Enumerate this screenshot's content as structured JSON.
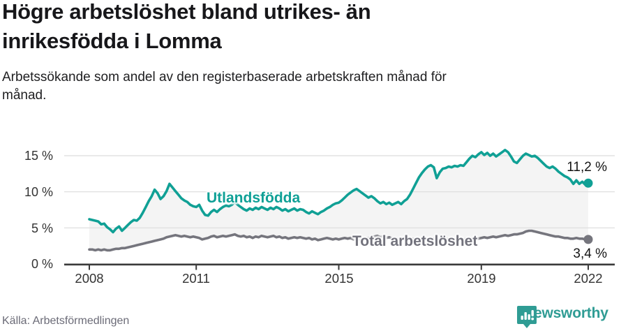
{
  "header": {
    "title_line1": "Högre arbetslöshet bland utrikes- än",
    "title_line2": "inrikesfödda i Lomma",
    "subtitle_line1": "Arbetssökande som andel av den registerbaserade arbetskraften månad för",
    "subtitle_line2": "månad."
  },
  "footer": {
    "source": "Källa: Arbetsförmedlingen",
    "brand_name": "Newsworthy",
    "brand_icon": "bar-chart-speech-bubble-icon",
    "brand_color": "#2f9c94"
  },
  "chart_data": {
    "type": "line",
    "unit": "%",
    "grid": true,
    "legend_position": "inline-on-chart",
    "x_axis": {
      "ticks": [
        2008,
        2011,
        2015,
        2019,
        2022
      ],
      "tick_labels": [
        "2008",
        "2011",
        "2015",
        "2019",
        "2022"
      ],
      "range_years": [
        2008,
        2022.0
      ]
    },
    "y_axis": {
      "ticks": [
        15,
        10,
        5,
        0
      ],
      "tick_labels": [
        "15 %",
        "10 %",
        "5 %",
        "0 %"
      ],
      "ylim": [
        0,
        16.5
      ]
    },
    "fill_between_color": "#f4f4f4",
    "gridline_color": "#dcdcdc",
    "axis_color": "#3a3a3a",
    "series": [
      {
        "name": "Utlandsfödda",
        "color": "#10a095",
        "end_label": "11,2 %",
        "end_value": 11.2,
        "start_year": 2008,
        "interval": "monthly",
        "values": [
          6.2,
          6.1,
          6.0,
          5.9,
          5.5,
          5.6,
          5.1,
          4.8,
          4.4,
          4.9,
          5.2,
          4.6,
          5.0,
          5.4,
          5.8,
          6.1,
          6.0,
          6.4,
          7.1,
          7.9,
          8.7,
          9.4,
          10.3,
          9.8,
          9.0,
          9.4,
          10.1,
          11.1,
          10.6,
          10.1,
          9.6,
          9.1,
          8.8,
          8.6,
          8.2,
          8.0,
          7.9,
          8.2,
          7.4,
          6.8,
          6.7,
          7.2,
          7.5,
          7.2,
          7.6,
          7.9,
          8.1,
          8.0,
          8.2,
          8.6,
          8.2,
          7.9,
          7.6,
          7.4,
          7.7,
          7.5,
          7.8,
          7.6,
          7.9,
          7.7,
          7.5,
          7.8,
          7.6,
          7.9,
          7.7,
          7.4,
          7.6,
          7.3,
          7.5,
          7.7,
          7.4,
          7.6,
          7.5,
          7.2,
          7.0,
          7.3,
          7.1,
          6.9,
          7.2,
          7.4,
          7.7,
          7.9,
          8.2,
          8.4,
          8.5,
          8.8,
          9.2,
          9.6,
          9.9,
          10.2,
          10.4,
          10.1,
          9.8,
          9.5,
          9.2,
          9.4,
          9.1,
          8.7,
          8.4,
          8.6,
          8.3,
          8.5,
          8.2,
          8.4,
          8.6,
          8.3,
          8.7,
          9.0,
          9.6,
          10.4,
          11.2,
          12.0,
          12.6,
          13.1,
          13.5,
          13.7,
          13.4,
          11.9,
          12.7,
          13.2,
          13.3,
          13.5,
          13.4,
          13.6,
          13.5,
          13.7,
          13.6,
          14.1,
          14.6,
          15.0,
          14.8,
          15.2,
          15.5,
          15.1,
          15.4,
          15.0,
          15.3,
          14.9,
          15.2,
          15.5,
          15.8,
          15.5,
          14.9,
          14.2,
          14.0,
          14.5,
          15.0,
          15.3,
          15.1,
          14.9,
          15.0,
          14.7,
          14.3,
          13.9,
          13.5,
          13.3,
          13.5,
          13.2,
          12.8,
          12.5,
          12.2,
          12.0,
          11.7,
          11.1,
          11.6,
          11.1,
          11.4,
          11.0,
          11.2
        ]
      },
      {
        "name": "Total arbetslöshet",
        "color": "#75757d",
        "end_label": "3,4 %",
        "end_value": 3.4,
        "start_year": 2008,
        "interval": "monthly",
        "values": [
          2.0,
          2.0,
          1.9,
          2.0,
          1.9,
          2.0,
          1.9,
          1.9,
          2.0,
          2.1,
          2.1,
          2.2,
          2.2,
          2.3,
          2.4,
          2.5,
          2.6,
          2.7,
          2.8,
          2.9,
          3.0,
          3.1,
          3.2,
          3.3,
          3.4,
          3.5,
          3.7,
          3.8,
          3.9,
          4.0,
          3.9,
          3.8,
          3.9,
          3.8,
          3.7,
          3.8,
          3.7,
          3.6,
          3.4,
          3.5,
          3.6,
          3.8,
          3.9,
          3.7,
          3.8,
          3.9,
          3.8,
          3.9,
          4.0,
          4.1,
          3.9,
          3.8,
          3.9,
          3.7,
          3.8,
          3.6,
          3.8,
          3.7,
          3.9,
          3.8,
          3.7,
          3.8,
          3.9,
          3.7,
          3.8,
          3.6,
          3.7,
          3.5,
          3.6,
          3.7,
          3.6,
          3.7,
          3.6,
          3.5,
          3.6,
          3.4,
          3.5,
          3.3,
          3.4,
          3.5,
          3.6,
          3.5,
          3.4,
          3.5,
          3.4,
          3.5,
          3.6,
          3.5,
          3.6,
          3.4,
          3.5,
          3.3,
          3.4,
          3.5,
          3.6,
          3.7,
          3.8,
          3.9,
          3.7,
          3.8,
          3.6,
          3.7,
          3.5,
          3.6,
          3.4,
          3.5,
          3.4,
          3.5,
          3.4,
          3.5,
          3.3,
          3.4,
          3.5,
          3.4,
          3.3,
          3.4,
          3.5,
          3.4,
          3.5,
          3.6,
          3.5,
          3.4,
          3.5,
          3.3,
          3.4,
          3.3,
          3.4,
          3.5,
          3.4,
          3.5,
          3.6,
          3.5,
          3.6,
          3.7,
          3.6,
          3.7,
          3.8,
          3.7,
          3.8,
          3.9,
          4.0,
          3.9,
          4.0,
          4.1,
          4.1,
          4.2,
          4.3,
          4.5,
          4.6,
          4.6,
          4.5,
          4.4,
          4.3,
          4.2,
          4.1,
          4.0,
          3.9,
          3.8,
          3.8,
          3.7,
          3.6,
          3.6,
          3.5,
          3.5,
          3.6,
          3.5,
          3.5,
          3.4,
          3.4
        ]
      }
    ]
  }
}
